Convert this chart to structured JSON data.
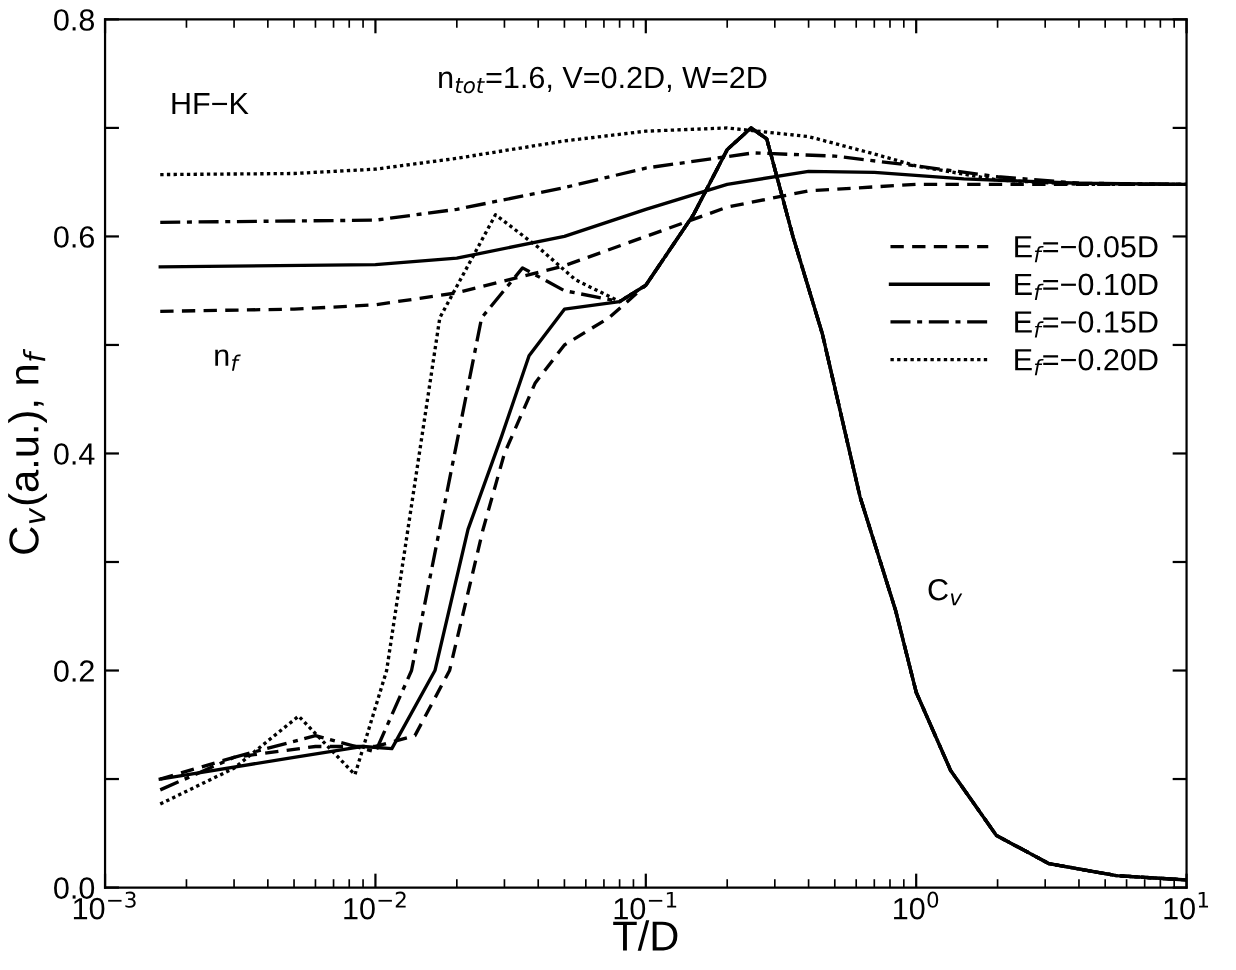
{
  "chart_data": {
    "type": "line",
    "xlabel": "T/D",
    "ylabel": "C$_{v}$(a.u.), n$_{f}$",
    "annotations": [
      "HF−K",
      "n$_{tot}$=1.6, V=0.2D, W=2D",
      "n$_{f}$",
      "C$_{v}$"
    ],
    "log": "x",
    "xlim": [
      0.001,
      10
    ],
    "ylim": [
      0,
      0.8
    ],
    "xticks": [
      {
        "value": 0.001,
        "label": "10$^{−3}$"
      },
      {
        "value": 0.01,
        "label": "10$^{−2}$"
      },
      {
        "value": 0.1,
        "label": "10$^{−1}$"
      },
      {
        "value": 1,
        "label": "10$^{0}$"
      },
      {
        "value": 10,
        "label": "10$^{1}$"
      }
    ],
    "yticks": [
      {
        "value": 0,
        "label": "0.0"
      },
      {
        "value": 0.1,
        "label": null
      },
      0.2,
      {
        "value": 0.3,
        "label": null
      },
      0.4,
      {
        "value": 0.5,
        "label": null
      },
      0.6,
      {
        "value": 0.7,
        "label": null
      },
      0.8
    ],
    "grid": false,
    "legend": "right",
    "marker": "none",
    "series": [
      {
        "name": "E$_{f}$=−0.05D",
        "color": "#000000",
        "line_style": "dashed",
        "x": [
          0.0016,
          0.005,
          0.01,
          0.02,
          0.05,
          0.1,
          0.2,
          0.4,
          1,
          10
        ],
        "values": [
          0.531,
          0.533,
          0.537,
          0.548,
          0.573,
          0.6,
          0.627,
          0.642,
          0.648,
          0.648
        ]
      },
      {
        "name": "E$_{f}$=−0.10D",
        "color": "#000000",
        "line_style": "solid",
        "x": [
          0.0016,
          0.01,
          0.02,
          0.05,
          0.1,
          0.2,
          0.4,
          0.7,
          1.5,
          4,
          10
        ],
        "values": [
          0.572,
          0.574,
          0.58,
          0.6,
          0.625,
          0.648,
          0.66,
          0.659,
          0.653,
          0.649,
          0.648
        ]
      },
      {
        "name": "E$_{f}$=−0.15D",
        "color": "#000000",
        "line_style": "dashdot",
        "x": [
          0.0016,
          0.01,
          0.02,
          0.05,
          0.1,
          0.25,
          0.5,
          1,
          2,
          4,
          10
        ],
        "values": [
          0.613,
          0.615,
          0.625,
          0.645,
          0.663,
          0.677,
          0.674,
          0.665,
          0.655,
          0.649,
          0.648
        ]
      },
      {
        "name": "E$_{f}$=−0.20D",
        "color": "#000000",
        "line_style": "dotted",
        "x": [
          0.0016,
          0.005,
          0.01,
          0.02,
          0.05,
          0.1,
          0.2,
          0.4,
          0.7,
          1,
          2,
          4,
          10
        ],
        "values": [
          0.657,
          0.658,
          0.662,
          0.672,
          0.688,
          0.697,
          0.7,
          0.692,
          0.676,
          0.665,
          0.652,
          0.648,
          0.648
        ]
      },
      {
        "color": "#000000",
        "line_style": "dashed",
        "x": [
          0.0016,
          0.003,
          0.006,
          0.01,
          0.014,
          0.0188,
          0.025,
          0.03,
          0.039,
          0.05,
          0.073,
          0.1,
          0.15,
          0.2,
          0.245,
          0.28,
          0.35,
          0.45,
          0.62,
          0.84,
          1.0,
          1.34,
          1.98,
          3.1,
          5.5,
          10
        ],
        "values": [
          0.1,
          0.12,
          0.13,
          0.13,
          0.14,
          0.2,
          0.33,
          0.4,
          0.465,
          0.5,
          0.525,
          0.555,
          0.62,
          0.68,
          0.7,
          0.69,
          0.6,
          0.51,
          0.36,
          0.255,
          0.18,
          0.108,
          0.048,
          0.022,
          0.011,
          0.007
        ]
      },
      {
        "color": "#000000",
        "line_style": "solid",
        "x": [
          0.0016,
          0.005,
          0.009,
          0.0115,
          0.0166,
          0.022,
          0.0293,
          0.037,
          0.05,
          0.08,
          0.1,
          0.15,
          0.2,
          0.245,
          0.28,
          0.35,
          0.45,
          0.62,
          0.84,
          1.0,
          1.34,
          1.98,
          3.1,
          5.5,
          10
        ],
        "values": [
          0.1,
          0.12,
          0.13,
          0.128,
          0.2,
          0.33,
          0.416,
          0.49,
          0.533,
          0.54,
          0.555,
          0.62,
          0.68,
          0.7,
          0.69,
          0.6,
          0.51,
          0.36,
          0.255,
          0.18,
          0.108,
          0.048,
          0.022,
          0.011,
          0.007
        ]
      },
      {
        "color": "#000000",
        "line_style": "dashdot",
        "x": [
          0.0016,
          0.003,
          0.006,
          0.01,
          0.0136,
          0.0247,
          0.035,
          0.05,
          0.08,
          0.1,
          0.15,
          0.2,
          0.245,
          0.28,
          0.35,
          0.45,
          0.62,
          0.84,
          1.0,
          1.34,
          1.98,
          3.1,
          5.5,
          10
        ],
        "values": [
          0.09,
          0.12,
          0.14,
          0.125,
          0.2,
          0.525,
          0.571,
          0.55,
          0.54,
          0.555,
          0.62,
          0.68,
          0.7,
          0.69,
          0.6,
          0.51,
          0.36,
          0.255,
          0.18,
          0.108,
          0.048,
          0.022,
          0.011,
          0.007
        ]
      },
      {
        "color": "#000000",
        "line_style": "dotted",
        "x": [
          0.0016,
          0.003,
          0.0052,
          0.0084,
          0.011,
          0.0173,
          0.0278,
          0.04,
          0.055,
          0.08,
          0.1,
          0.15,
          0.2,
          0.245,
          0.28,
          0.35,
          0.45,
          0.62,
          0.84,
          1.0,
          1.34,
          1.98,
          3.1,
          5.5,
          10
        ],
        "values": [
          0.077,
          0.11,
          0.158,
          0.104,
          0.2,
          0.525,
          0.62,
          0.59,
          0.56,
          0.54,
          0.555,
          0.62,
          0.68,
          0.7,
          0.69,
          0.6,
          0.51,
          0.36,
          0.255,
          0.18,
          0.108,
          0.048,
          0.022,
          0.011,
          0.007
        ]
      }
    ]
  }
}
